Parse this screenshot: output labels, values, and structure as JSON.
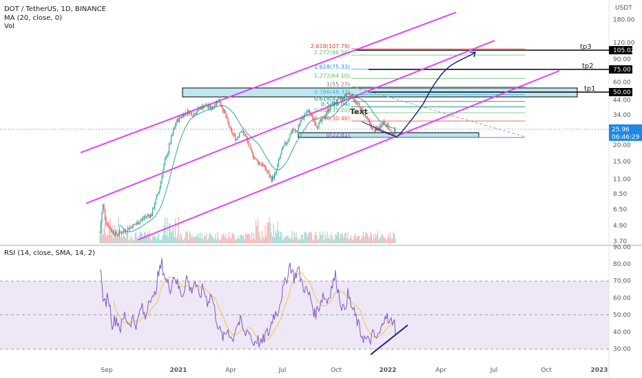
{
  "header": {
    "title": "DOT / TetherUS, 1D, BINANCE",
    "ma": "MA (20, close, 0)",
    "vol": "Vol",
    "rsi": "RSI (14, close, SMA, 14, 2)",
    "currency": "USDT"
  },
  "colors": {
    "up": "#26a69a",
    "down": "#ef5350",
    "ma": "#2aa1a1",
    "channel": "#e040fb",
    "zone": "#a5dde6",
    "rsi": "#7e57c2",
    "rsi_sma": "#f6c343",
    "rsi_band": "#ede7f6",
    "arrow": "#1a237e"
  },
  "chart_data": {
    "type": "candlestick",
    "x_ticks": [
      "Sep",
      "2021",
      "Apr",
      "Jul",
      "Oct",
      "2022",
      "Apr",
      "Jul",
      "Oct",
      "2023"
    ],
    "y_axis_price": [
      "180.00",
      "120.00",
      "90.00",
      "60.00",
      "44.00",
      "34.00",
      "25.96",
      "20.00",
      "15.00",
      "11.00",
      "8.50",
      "6.50",
      "4.90",
      "3.70"
    ],
    "y_axis_rsi": [
      "90.00",
      "80.00",
      "70.00",
      "60.00",
      "50.00",
      "40.00",
      "30.00"
    ],
    "current_price": "25.96",
    "countdown": "06:46:29",
    "targets": [
      {
        "name": "tp1",
        "value": "50.00"
      },
      {
        "name": "tp2",
        "value": "75.00"
      },
      {
        "name": "tp3",
        "value": "105.02"
      }
    ],
    "fib_levels": [
      {
        "label": "2.618(107.79)",
        "value": 107.79
      },
      {
        "label": "2.272(96.56)",
        "value": 96.56
      },
      {
        "label": "1.618(75.33)",
        "value": 75.33
      },
      {
        "label": "1.272(64.10)",
        "value": 64.1
      },
      {
        "label": "1(55.27)",
        "value": 55.27
      },
      {
        "label": "0.786(48.33)",
        "value": 48.33
      },
      {
        "label": "0.618(42.87)",
        "value": 42.87
      },
      {
        "label": "0.5(39.04)",
        "value": 39.04
      },
      {
        "label": "0.382(35.20)",
        "value": 35.2
      },
      {
        "label": "0.236(30.46)",
        "value": 30.46
      },
      {
        "label": "0(22.81)",
        "value": 22.81
      }
    ],
    "annotation": "Text",
    "rsi_levels": {
      "upper": 70,
      "middle": 50,
      "lower": 30
    },
    "price_path": [
      [
        0,
        4.3
      ],
      [
        3,
        7.0
      ],
      [
        6,
        5.2
      ],
      [
        10,
        4.6
      ],
      [
        15,
        4.2
      ],
      [
        20,
        4.3
      ],
      [
        25,
        4.5
      ],
      [
        30,
        4.8
      ],
      [
        35,
        5.0
      ],
      [
        40,
        5.4
      ],
      [
        45,
        5.8
      ],
      [
        50,
        5.9
      ],
      [
        55,
        8.0
      ],
      [
        58,
        9.5
      ],
      [
        62,
        14.0
      ],
      [
        66,
        18.0
      ],
      [
        70,
        24.0
      ],
      [
        74,
        30.0
      ],
      [
        80,
        34.0
      ],
      [
        86,
        36.0
      ],
      [
        90,
        34.0
      ],
      [
        96,
        38.0
      ],
      [
        102,
        40.0
      ],
      [
        108,
        38.0
      ],
      [
        112,
        42.0
      ],
      [
        115,
        44.0
      ],
      [
        120,
        36.0
      ],
      [
        126,
        26.0
      ],
      [
        132,
        22.0
      ],
      [
        136,
        26.0
      ],
      [
        140,
        24.0
      ],
      [
        146,
        18.0
      ],
      [
        152,
        15.0
      ],
      [
        158,
        14.0
      ],
      [
        163,
        12.0
      ],
      [
        166,
        11.0
      ],
      [
        170,
        12.0
      ],
      [
        176,
        18.0
      ],
      [
        182,
        22.0
      ],
      [
        186,
        26.0
      ],
      [
        190,
        25.0
      ],
      [
        194,
        30.0
      ],
      [
        198,
        34.0
      ],
      [
        202,
        36.0
      ],
      [
        206,
        32.0
      ],
      [
        210,
        28.0
      ],
      [
        214,
        30.0
      ],
      [
        220,
        36.0
      ],
      [
        224,
        40.0
      ],
      [
        228,
        42.0
      ],
      [
        232,
        44.0
      ],
      [
        236,
        46.0
      ],
      [
        240,
        50.0
      ],
      [
        244,
        47.0
      ],
      [
        248,
        42.0
      ],
      [
        254,
        36.0
      ],
      [
        258,
        32.0
      ],
      [
        262,
        28.0
      ],
      [
        266,
        26.0
      ],
      [
        270,
        27.0
      ],
      [
        274,
        30.0
      ],
      [
        278,
        28.0
      ],
      [
        282,
        24.0
      ],
      [
        286,
        25.96
      ]
    ],
    "rsi_path": [
      [
        0,
        80
      ],
      [
        4,
        55
      ],
      [
        8,
        62
      ],
      [
        12,
        45
      ],
      [
        16,
        48
      ],
      [
        20,
        42
      ],
      [
        24,
        50
      ],
      [
        28,
        45
      ],
      [
        32,
        48
      ],
      [
        36,
        44
      ],
      [
        40,
        55
      ],
      [
        44,
        48
      ],
      [
        48,
        62
      ],
      [
        52,
        58
      ],
      [
        56,
        72
      ],
      [
        60,
        80
      ],
      [
        64,
        70
      ],
      [
        68,
        66
      ],
      [
        72,
        74
      ],
      [
        76,
        66
      ],
      [
        80,
        62
      ],
      [
        84,
        72
      ],
      [
        88,
        64
      ],
      [
        92,
        70
      ],
      [
        96,
        60
      ],
      [
        100,
        66
      ],
      [
        104,
        58
      ],
      [
        108,
        62
      ],
      [
        112,
        50
      ],
      [
        116,
        40
      ],
      [
        120,
        36
      ],
      [
        124,
        42
      ],
      [
        128,
        35
      ],
      [
        132,
        44
      ],
      [
        136,
        46
      ],
      [
        140,
        38
      ],
      [
        144,
        42
      ],
      [
        148,
        33
      ],
      [
        152,
        36
      ],
      [
        156,
        32
      ],
      [
        160,
        38
      ],
      [
        164,
        40
      ],
      [
        168,
        50
      ],
      [
        172,
        52
      ],
      [
        176,
        62
      ],
      [
        180,
        70
      ],
      [
        184,
        80
      ],
      [
        188,
        72
      ],
      [
        192,
        77
      ],
      [
        196,
        68
      ],
      [
        200,
        64
      ],
      [
        204,
        60
      ],
      [
        208,
        50
      ],
      [
        212,
        55
      ],
      [
        216,
        62
      ],
      [
        220,
        58
      ],
      [
        224,
        66
      ],
      [
        228,
        73
      ],
      [
        232,
        60
      ],
      [
        236,
        52
      ],
      [
        240,
        62
      ],
      [
        244,
        54
      ],
      [
        248,
        48
      ],
      [
        252,
        40
      ],
      [
        256,
        36
      ],
      [
        260,
        34
      ],
      [
        264,
        38
      ],
      [
        268,
        36
      ],
      [
        272,
        40
      ],
      [
        276,
        52
      ],
      [
        280,
        44
      ],
      [
        284,
        48
      ],
      [
        286,
        42
      ]
    ]
  }
}
